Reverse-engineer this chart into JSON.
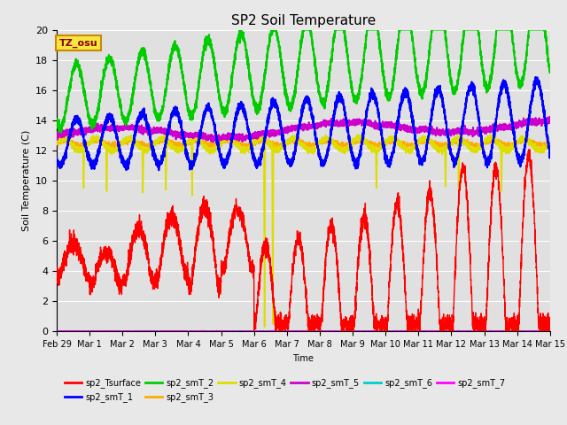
{
  "title": "SP2 Soil Temperature",
  "xlabel": "Time",
  "ylabel": "Soil Temperature (C)",
  "ylim": [
    0,
    20
  ],
  "background_color": "#e8e8e8",
  "plot_bg_color": "#e0e0e0",
  "grid_color": "#ffffff",
  "tz_label": "TZ_osu",
  "series_colors": {
    "sp2_Tsurface": "#ff0000",
    "sp2_smT_1": "#0000ff",
    "sp2_smT_2": "#00cc00",
    "sp2_smT_3": "#ffaa00",
    "sp2_smT_4": "#dddd00",
    "sp2_smT_5": "#cc00cc",
    "sp2_smT_6": "#00cccc",
    "sp2_smT_7": "#ff00ff"
  },
  "tick_labels": [
    "Feb 29",
    "Mar 1",
    "Mar 2",
    "Mar 3",
    "Mar 4",
    "Mar 5",
    "Mar 6",
    "Mar 7",
    "Mar 8",
    "Mar 9",
    "Mar 10",
    "Mar 11",
    "Mar 12",
    "Mar 13",
    "Mar 14",
    "Mar 15"
  ],
  "yticks": [
    0,
    2,
    4,
    6,
    8,
    10,
    12,
    14,
    16,
    18,
    20
  ]
}
